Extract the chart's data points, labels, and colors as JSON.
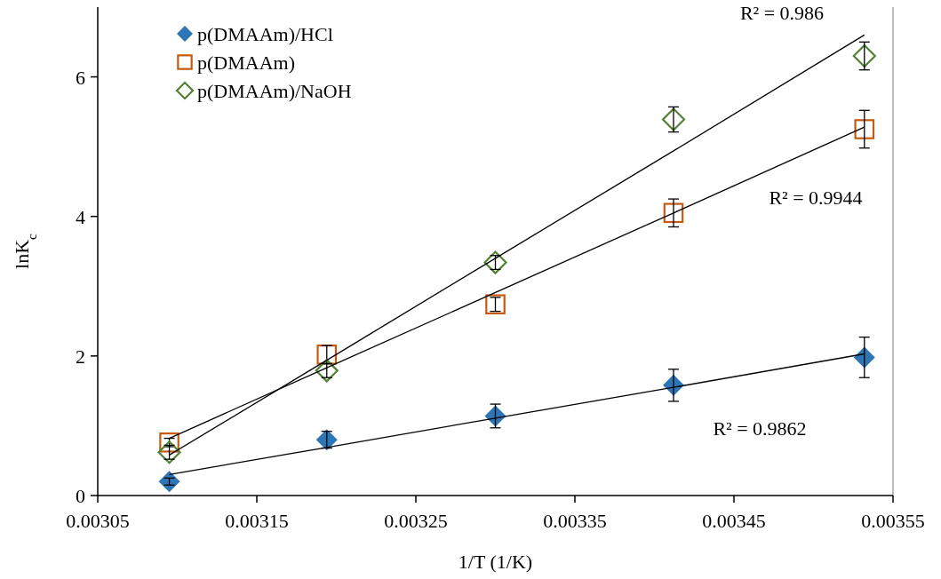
{
  "chart_data": {
    "type": "scatter",
    "xlabel": "1/T (1/K)",
    "ylabel": "lnK$_{c}$",
    "x": [
      0.003095,
      0.003194,
      0.0033,
      0.003412,
      0.003532
    ],
    "xlim": [
      0.00305,
      0.00355
    ],
    "xticks": [
      0.00305,
      0.00315,
      0.00325,
      0.00335,
      0.00345,
      0.00355
    ],
    "ylim": [
      0,
      7
    ],
    "yticks": [
      0,
      2,
      4,
      6
    ],
    "grid": false,
    "legend": "top left",
    "series": [
      {
        "name": "p(DMAAm)/HCl",
        "color": "#2e75b6",
        "marker": "diamond",
        "values": [
          0.2,
          0.8,
          1.14,
          1.58,
          1.98
        ],
        "errors": [
          0.05,
          0.12,
          0.17,
          0.23,
          0.29
        ]
      },
      {
        "name": "p(DMAAm)",
        "color": "#c55a11",
        "marker": "square",
        "values": [
          0.76,
          2.02,
          2.74,
          4.05,
          5.25
        ],
        "errors": [
          0.06,
          0.13,
          0.1,
          0.2,
          0.27
        ]
      },
      {
        "name": "p(DMAAm)/NaOH",
        "color": "#548235",
        "marker": "diamond",
        "values": [
          0.62,
          1.79,
          3.34,
          5.39,
          6.3
        ],
        "errors": [
          0.1,
          0.1,
          0.1,
          0.18,
          0.2
        ]
      },
      {
        "type": "line",
        "color": "#000000",
        "values": [
          0.3,
          0.69,
          1.11,
          1.55,
          2.03
        ]
      },
      {
        "type": "line",
        "color": "#000000",
        "values": [
          0.82,
          1.83,
          2.91,
          4.05,
          5.28
        ]
      },
      {
        "type": "line",
        "color": "#000000",
        "values": [
          0.58,
          1.94,
          3.4,
          4.94,
          6.6
        ]
      }
    ],
    "annotations": [
      "R² = 0.986",
      "R² = 0.9944",
      "R² = 0.9862"
    ]
  }
}
